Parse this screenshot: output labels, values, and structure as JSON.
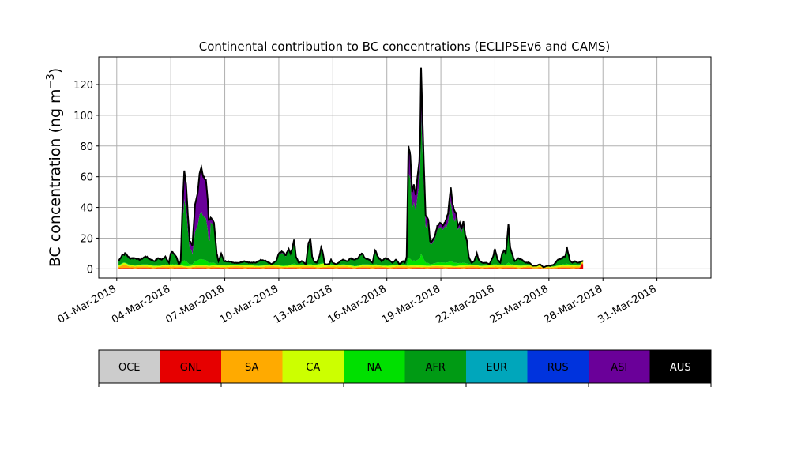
{
  "chart_data": {
    "type": "area",
    "stacked": true,
    "title": "Continental contribution to BC concentrations (ECLIPSEv6 and CAMS)",
    "ylabel_main": "BC concentration (ng m",
    "ylabel_sup": "−3",
    "ylabel_tail": ")",
    "xlabel": "",
    "grid": true,
    "xlim_day": [
      0.0,
      34.0
    ],
    "ylim": [
      -6,
      138
    ],
    "yticks": [
      0,
      20,
      40,
      60,
      80,
      100,
      120
    ],
    "xticks": [
      {
        "day": 1,
        "label": "01-Mar-2018"
      },
      {
        "day": 4,
        "label": "04-Mar-2018"
      },
      {
        "day": 7,
        "label": "07-Mar-2018"
      },
      {
        "day": 10,
        "label": "10-Mar-2018"
      },
      {
        "day": 13,
        "label": "13-Mar-2018"
      },
      {
        "day": 16,
        "label": "16-Mar-2018"
      },
      {
        "day": 19,
        "label": "19-Mar-2018"
      },
      {
        "day": 22,
        "label": "22-Mar-2018"
      },
      {
        "day": 25,
        "label": "25-Mar-2018"
      },
      {
        "day": 28,
        "label": "28-Mar-2018"
      },
      {
        "day": 31,
        "label": "31-Mar-2018"
      }
    ],
    "colorbar_labels": [
      "OCE",
      "GNL",
      "SA",
      "CA",
      "NA",
      "AFR",
      "EUR",
      "RUS",
      "ASI",
      "AUS"
    ],
    "colorbar_colors": [
      "#cccccc",
      "#e60000",
      "#ffaa00",
      "#ccff00",
      "#00e000",
      "#009a14",
      "#00a6bb",
      "#0033dd",
      "#6a0099",
      "#000000"
    ],
    "total_keypoints": [
      [
        1.1,
        5
      ],
      [
        1.3,
        9
      ],
      [
        1.5,
        10
      ],
      [
        1.7,
        7
      ],
      [
        2.0,
        7
      ],
      [
        2.3,
        6
      ],
      [
        2.6,
        8
      ],
      [
        2.9,
        6
      ],
      [
        3.1,
        5
      ],
      [
        3.3,
        7
      ],
      [
        3.5,
        6
      ],
      [
        3.7,
        8
      ],
      [
        3.9,
        4
      ],
      [
        4.0,
        10
      ],
      [
        4.1,
        11
      ],
      [
        4.3,
        8
      ],
      [
        4.45,
        3
      ],
      [
        4.55,
        5
      ],
      [
        4.65,
        40
      ],
      [
        4.75,
        64
      ],
      [
        4.85,
        55
      ],
      [
        4.95,
        35
      ],
      [
        5.05,
        18
      ],
      [
        5.2,
        15
      ],
      [
        5.35,
        42
      ],
      [
        5.5,
        50
      ],
      [
        5.6,
        62
      ],
      [
        5.7,
        66
      ],
      [
        5.8,
        60
      ],
      [
        5.95,
        58
      ],
      [
        6.05,
        45
      ],
      [
        6.1,
        32
      ],
      [
        6.25,
        33
      ],
      [
        6.4,
        30
      ],
      [
        6.55,
        10
      ],
      [
        6.65,
        5
      ],
      [
        6.8,
        10
      ],
      [
        6.95,
        5
      ],
      [
        7.2,
        5
      ],
      [
        7.5,
        4
      ],
      [
        7.8,
        4
      ],
      [
        8.1,
        5
      ],
      [
        8.4,
        4
      ],
      [
        8.7,
        4
      ],
      [
        9.0,
        6
      ],
      [
        9.3,
        5
      ],
      [
        9.6,
        3
      ],
      [
        9.85,
        5
      ],
      [
        10.0,
        10
      ],
      [
        10.2,
        11
      ],
      [
        10.4,
        9
      ],
      [
        10.55,
        13
      ],
      [
        10.65,
        10
      ],
      [
        10.75,
        13
      ],
      [
        10.85,
        19
      ],
      [
        10.95,
        8
      ],
      [
        11.1,
        4
      ],
      [
        11.3,
        5
      ],
      [
        11.5,
        3
      ],
      [
        11.65,
        17
      ],
      [
        11.75,
        20
      ],
      [
        11.85,
        8
      ],
      [
        11.95,
        5
      ],
      [
        12.1,
        4
      ],
      [
        12.25,
        8
      ],
      [
        12.35,
        14
      ],
      [
        12.45,
        10
      ],
      [
        12.55,
        3
      ],
      [
        12.8,
        3
      ],
      [
        12.9,
        6
      ],
      [
        13.0,
        4
      ],
      [
        13.2,
        3
      ],
      [
        13.4,
        5
      ],
      [
        13.6,
        6
      ],
      [
        13.8,
        5
      ],
      [
        14.0,
        7
      ],
      [
        14.2,
        6
      ],
      [
        14.4,
        7
      ],
      [
        14.6,
        10
      ],
      [
        14.8,
        7
      ],
      [
        15.0,
        6
      ],
      [
        15.2,
        4
      ],
      [
        15.35,
        12
      ],
      [
        15.5,
        8
      ],
      [
        15.7,
        5
      ],
      [
        15.9,
        7
      ],
      [
        16.1,
        6
      ],
      [
        16.3,
        4
      ],
      [
        16.5,
        6
      ],
      [
        16.7,
        3
      ],
      [
        16.9,
        5
      ],
      [
        17.0,
        4
      ],
      [
        17.1,
        8
      ],
      [
        17.2,
        80
      ],
      [
        17.3,
        74
      ],
      [
        17.4,
        50
      ],
      [
        17.5,
        55
      ],
      [
        17.6,
        48
      ],
      [
        17.7,
        60
      ],
      [
        17.8,
        70
      ],
      [
        17.85,
        85
      ],
      [
        17.9,
        131
      ],
      [
        17.95,
        110
      ],
      [
        18.05,
        70
      ],
      [
        18.15,
        35
      ],
      [
        18.3,
        32
      ],
      [
        18.4,
        18
      ],
      [
        18.5,
        18
      ],
      [
        18.6,
        20
      ],
      [
        18.7,
        23
      ],
      [
        18.8,
        28
      ],
      [
        18.95,
        30
      ],
      [
        19.1,
        28
      ],
      [
        19.2,
        30
      ],
      [
        19.3,
        32
      ],
      [
        19.4,
        36
      ],
      [
        19.5,
        48
      ],
      [
        19.55,
        53
      ],
      [
        19.65,
        42
      ],
      [
        19.75,
        38
      ],
      [
        19.85,
        36
      ],
      [
        19.95,
        28
      ],
      [
        20.05,
        30
      ],
      [
        20.15,
        26
      ],
      [
        20.25,
        31
      ],
      [
        20.35,
        22
      ],
      [
        20.45,
        18
      ],
      [
        20.55,
        8
      ],
      [
        20.7,
        4
      ],
      [
        20.85,
        5
      ],
      [
        21.0,
        10
      ],
      [
        21.1,
        6
      ],
      [
        21.3,
        4
      ],
      [
        21.5,
        4
      ],
      [
        21.7,
        3
      ],
      [
        21.9,
        8
      ],
      [
        22.0,
        13
      ],
      [
        22.15,
        6
      ],
      [
        22.3,
        4
      ],
      [
        22.4,
        10
      ],
      [
        22.5,
        12
      ],
      [
        22.6,
        10
      ],
      [
        22.7,
        22
      ],
      [
        22.75,
        29
      ],
      [
        22.85,
        14
      ],
      [
        22.95,
        10
      ],
      [
        23.1,
        5
      ],
      [
        23.3,
        7
      ],
      [
        23.5,
        6
      ],
      [
        23.7,
        4
      ],
      [
        23.9,
        4
      ],
      [
        24.1,
        2
      ],
      [
        24.3,
        2
      ],
      [
        24.5,
        3
      ],
      [
        24.7,
        1
      ],
      [
        24.9,
        2
      ],
      [
        25.1,
        2
      ],
      [
        25.3,
        3
      ],
      [
        25.5,
        6
      ],
      [
        25.7,
        7
      ],
      [
        25.9,
        8
      ],
      [
        26.0,
        14
      ],
      [
        26.15,
        6
      ],
      [
        26.3,
        4
      ],
      [
        26.45,
        5
      ],
      [
        26.6,
        4
      ],
      [
        26.9,
        5
      ]
    ],
    "annotations": []
  }
}
